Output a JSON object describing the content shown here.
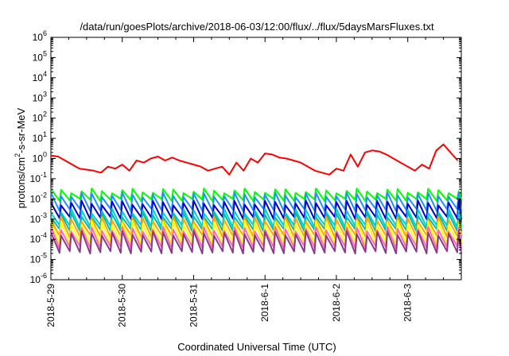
{
  "chart_data": {
    "type": "line",
    "title": "/data/run/goesPlots/archive/2018-06-03/12:00/flux/../flux/5daysMarsFluxes.txt",
    "xlabel": "Coordinated Universal Time (UTC)",
    "ylabel": "protons/cm^2-s-sr-MeV",
    "yscale": "log",
    "ylim_exponent": [
      -6,
      6
    ],
    "y_tick_labels": [
      "10^-6",
      "10^-5",
      "10^-4",
      "10^-3",
      "10^-2",
      "10^-1",
      "10^0",
      "10^1",
      "10^2",
      "10^3",
      "10^4",
      "10^5",
      "10^6"
    ],
    "xlim_days": [
      "2018-05-29T00:00",
      "2018-06-03T18:00"
    ],
    "x_tick_labels": [
      "2018-5-29",
      "2018-5-30",
      "2018-5-31",
      "2018-6-1",
      "2018-6-2",
      "2018-6-3"
    ],
    "grid": false,
    "legend": "none",
    "series": [
      {
        "color": "#ff0000",
        "pattern": "sawtooth",
        "points_per_day": 10,
        "log10_flux": [
          0.15,
          0.1,
          -0.1,
          -0.3,
          -0.5,
          -0.55,
          -0.6,
          -0.7,
          -0.4,
          -0.5,
          -0.3,
          -0.6,
          -0.1,
          -0.2,
          0,
          0.1,
          -0.1,
          0.05,
          -0.1,
          -0.2,
          -0.3,
          -0.4,
          -0.6,
          -0.5,
          -0.4,
          -0.8,
          -0.2,
          -0.6,
          0,
          -0.2,
          0.25,
          0.2,
          0.05,
          0,
          -0.1,
          -0.2,
          -0.4,
          -0.6,
          -0.7,
          -0.8,
          -0.5,
          -0.6,
          0.2,
          -0.4,
          0.3,
          0.4,
          0.35,
          0.2,
          0,
          -0.2,
          -0.4,
          -0.6,
          -0.3,
          -0.5,
          0.4,
          0.7,
          0.3,
          -0.1,
          -0.5,
          -0.6,
          0.75,
          0.6,
          0.45,
          0.3,
          0.1,
          -0.2,
          -0.5,
          -0.7,
          -0.3,
          -0.2,
          0.4,
          0.1,
          0.7,
          0.6,
          0.5,
          0.3,
          0.2,
          0.0,
          -0.3,
          -0.6,
          -0.3,
          -0.7,
          0.1,
          -0.4,
          0.4,
          0.3,
          0.15,
          0,
          -0.3,
          -0.5,
          -0.6,
          -0.3,
          -0.1,
          0.3,
          0.7,
          0.6,
          0.5,
          0.3,
          0.1,
          0.0,
          0,
          0.3,
          -0.1,
          0.4
        ]
      },
      {
        "color": "#00ff00",
        "pattern": "spiky",
        "low": -2.05,
        "high": -1.6
      },
      {
        "color": "#1e90ff",
        "pattern": "spiky",
        "low": -2.55,
        "high": -1.8
      },
      {
        "color": "#0000cd",
        "pattern": "spiky",
        "low": -2.95,
        "high": -2.2
      },
      {
        "color": "#00ced1",
        "pattern": "spiky",
        "low": -3.35,
        "high": -2.6
      },
      {
        "color": "#00bfa5",
        "pattern": "spiky",
        "low": -3.55,
        "high": -2.8
      },
      {
        "color": "#ffa500",
        "pattern": "spiky",
        "low": -3.85,
        "high": -3.0
      },
      {
        "color": "#ffff00",
        "pattern": "spiky",
        "low": -4.2,
        "high": -3.2
      },
      {
        "color": "#ff69b4",
        "pattern": "spiky",
        "low": -4.4,
        "high": -3.5
      },
      {
        "color": "#8b3a8b",
        "pattern": "spiky",
        "low": -4.65,
        "high": -3.7
      }
    ]
  }
}
